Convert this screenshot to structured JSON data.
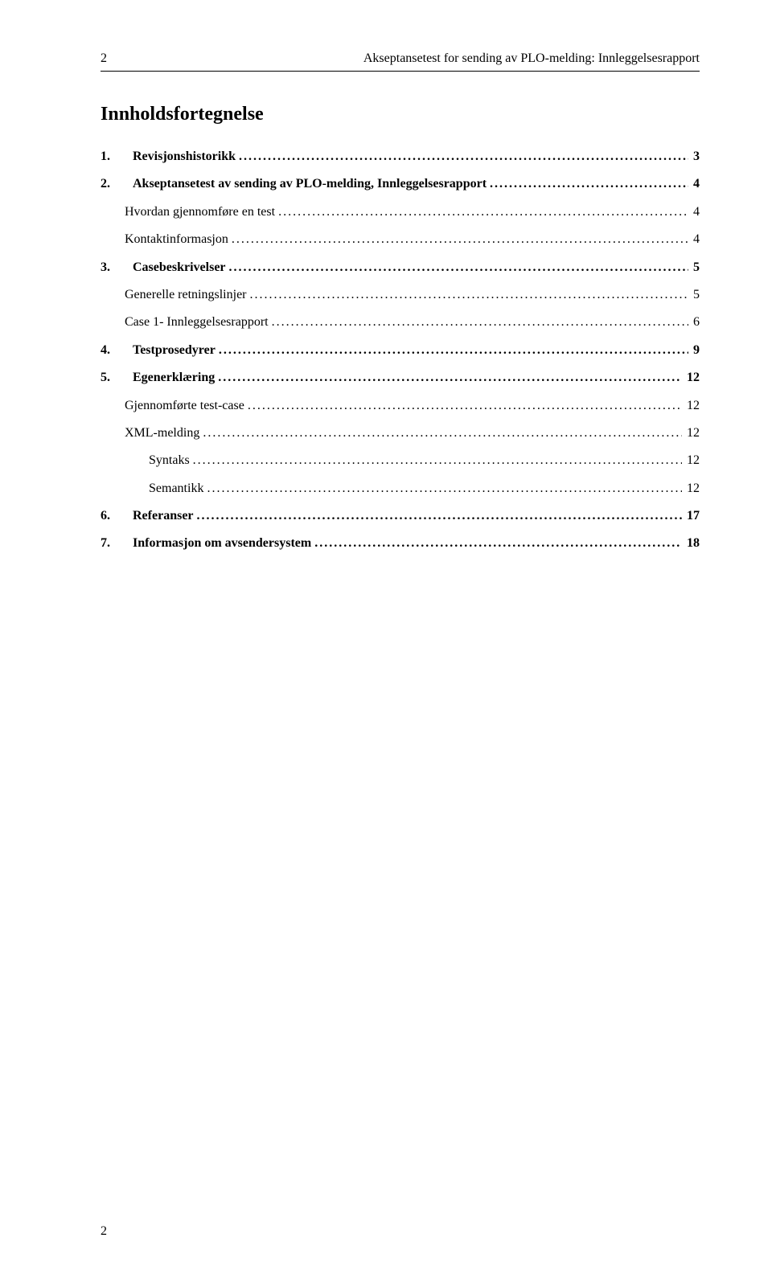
{
  "header": {
    "page_number_top": "2",
    "running_title": "Akseptansetest for sending av PLO-melding: Innleggelsesrapport"
  },
  "title": "Innholdsfortegnelse",
  "toc": [
    {
      "num": "1.",
      "label": "Revisjonshistorikk",
      "page": "3",
      "level": 0,
      "bold": true
    },
    {
      "num": "2.",
      "label": "Akseptansetest av sending av PLO-melding, Innleggelsesrapport",
      "page": "4",
      "level": 0,
      "bold": true
    },
    {
      "num": "",
      "label": "Hvordan gjennomføre en test",
      "page": "4",
      "level": 1,
      "bold": false
    },
    {
      "num": "",
      "label": "Kontaktinformasjon",
      "page": "4",
      "level": 1,
      "bold": false
    },
    {
      "num": "3.",
      "label": "Casebeskrivelser",
      "page": "5",
      "level": 0,
      "bold": true
    },
    {
      "num": "",
      "label": "Generelle retningslinjer",
      "page": "5",
      "level": 1,
      "bold": false
    },
    {
      "num": "",
      "label": "Case 1- Innleggelsesrapport",
      "page": "6",
      "level": 1,
      "bold": false
    },
    {
      "num": "4.",
      "label": "Testprosedyrer",
      "page": "9",
      "level": 0,
      "bold": true
    },
    {
      "num": "5.",
      "label": "Egenerklæring",
      "page": "12",
      "level": 0,
      "bold": true
    },
    {
      "num": "",
      "label": "Gjennomførte test-case",
      "page": "12",
      "level": 1,
      "bold": false
    },
    {
      "num": "",
      "label": "XML-melding",
      "page": "12",
      "level": 1,
      "bold": false
    },
    {
      "num": "",
      "label": "Syntaks",
      "page": "12",
      "level": 2,
      "bold": false
    },
    {
      "num": "",
      "label": "Semantikk",
      "page": "12",
      "level": 2,
      "bold": false
    },
    {
      "num": "6.",
      "label": "Referanser",
      "page": "17",
      "level": 0,
      "bold": true
    },
    {
      "num": "7.",
      "label": "Informasjon om avsendersystem",
      "page": "18",
      "level": 0,
      "bold": true
    }
  ],
  "footer": {
    "page_number_bottom": "2"
  },
  "style": {
    "font_family": "Times New Roman",
    "body_font_size_pt": 12,
    "title_font_size_pt": 18,
    "text_color": "#000000",
    "background_color": "#ffffff",
    "divider_color": "#000000"
  }
}
